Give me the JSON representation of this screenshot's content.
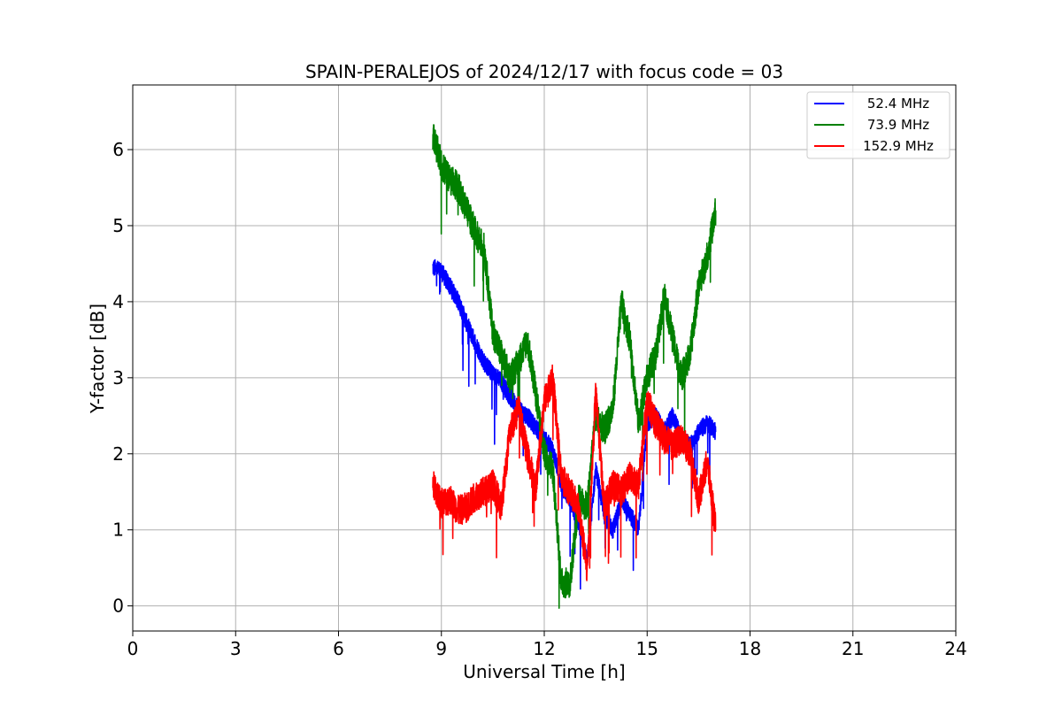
{
  "chart_data": {
    "type": "line",
    "title": "SPAIN-PERALEJOS of 2024/12/17 with focus code = 03",
    "xlabel": "Universal Time [h]",
    "ylabel": "Y-factor [dB]",
    "xlim": [
      0,
      24
    ],
    "ylim": [
      -0.33,
      6.85
    ],
    "xticks": [
      "0",
      "3",
      "6",
      "9",
      "12",
      "15",
      "18",
      "21",
      "24"
    ],
    "yticks": [
      "0",
      "1",
      "2",
      "3",
      "4",
      "5",
      "6"
    ],
    "grid": true,
    "legend_position": "top-right",
    "series": [
      {
        "name": "52.4 MHz",
        "color": "#0000ff",
        "noise": 0.12,
        "x": [
          8.75,
          9.0,
          9.25,
          9.5,
          9.75,
          10.0,
          10.25,
          10.5,
          10.75,
          11.0,
          11.25,
          11.5,
          11.75,
          12.0,
          12.25,
          12.5,
          12.75,
          13.0,
          13.25,
          13.5,
          13.75,
          14.0,
          14.25,
          14.5,
          14.75,
          15.0,
          15.25,
          15.5,
          15.75,
          16.0,
          16.25,
          16.5,
          16.75,
          17.0
        ],
        "y": [
          4.45,
          4.4,
          4.2,
          4.0,
          3.7,
          3.45,
          3.2,
          3.05,
          2.95,
          2.75,
          2.6,
          2.5,
          2.35,
          2.2,
          2.05,
          1.6,
          1.4,
          1.1,
          0.6,
          1.8,
          1.2,
          1.0,
          1.4,
          1.2,
          1.0,
          2.4,
          2.5,
          2.3,
          2.5,
          2.2,
          2.1,
          2.3,
          2.4,
          2.3
        ]
      },
      {
        "name": "73.9 MHz",
        "color": "#008000",
        "noise": 0.2,
        "x": [
          8.75,
          9.0,
          9.25,
          9.5,
          9.75,
          10.0,
          10.25,
          10.5,
          10.75,
          11.0,
          11.25,
          11.5,
          11.75,
          12.0,
          12.25,
          12.5,
          12.75,
          13.0,
          13.25,
          13.5,
          13.75,
          14.0,
          14.25,
          14.5,
          14.75,
          15.0,
          15.25,
          15.5,
          15.75,
          16.0,
          16.25,
          16.5,
          16.75,
          17.0
        ],
        "y": [
          6.2,
          5.8,
          5.6,
          5.5,
          5.2,
          4.9,
          4.7,
          3.6,
          3.3,
          3.0,
          3.2,
          3.5,
          2.8,
          2.0,
          1.8,
          0.3,
          0.3,
          1.4,
          1.3,
          2.5,
          2.3,
          2.6,
          4.0,
          3.5,
          2.4,
          3.0,
          3.3,
          4.1,
          3.5,
          3.0,
          3.3,
          4.2,
          4.6,
          5.2
        ]
      },
      {
        "name": "152.9 MHz",
        "color": "#ff0000",
        "noise": 0.2,
        "x": [
          8.75,
          9.0,
          9.25,
          9.5,
          9.75,
          10.0,
          10.25,
          10.5,
          10.75,
          11.0,
          11.25,
          11.5,
          11.75,
          12.0,
          12.25,
          12.5,
          12.75,
          13.0,
          13.25,
          13.5,
          13.75,
          14.0,
          14.25,
          14.5,
          14.75,
          15.0,
          15.25,
          15.5,
          15.75,
          16.0,
          16.25,
          16.5,
          16.75,
          17.0
        ],
        "y": [
          1.6,
          1.35,
          1.4,
          1.25,
          1.3,
          1.45,
          1.5,
          1.6,
          1.3,
          2.3,
          2.6,
          2.0,
          1.55,
          2.7,
          3.0,
          1.7,
          1.5,
          1.3,
          0.45,
          2.8,
          1.3,
          1.6,
          1.5,
          1.7,
          1.6,
          2.7,
          2.4,
          2.2,
          2.1,
          2.2,
          2.0,
          1.4,
          1.9,
          1.0
        ]
      }
    ]
  }
}
